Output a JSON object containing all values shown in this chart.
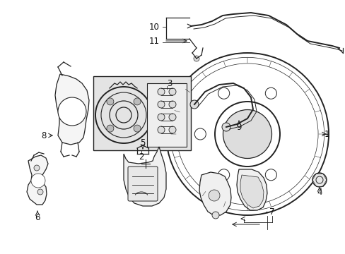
{
  "bg_color": "#ffffff",
  "line_color": "#222222",
  "label_color": "#111111",
  "box_fill": "#e8e8e8",
  "fig_w": 4.89,
  "fig_h": 3.6,
  "dpi": 100
}
